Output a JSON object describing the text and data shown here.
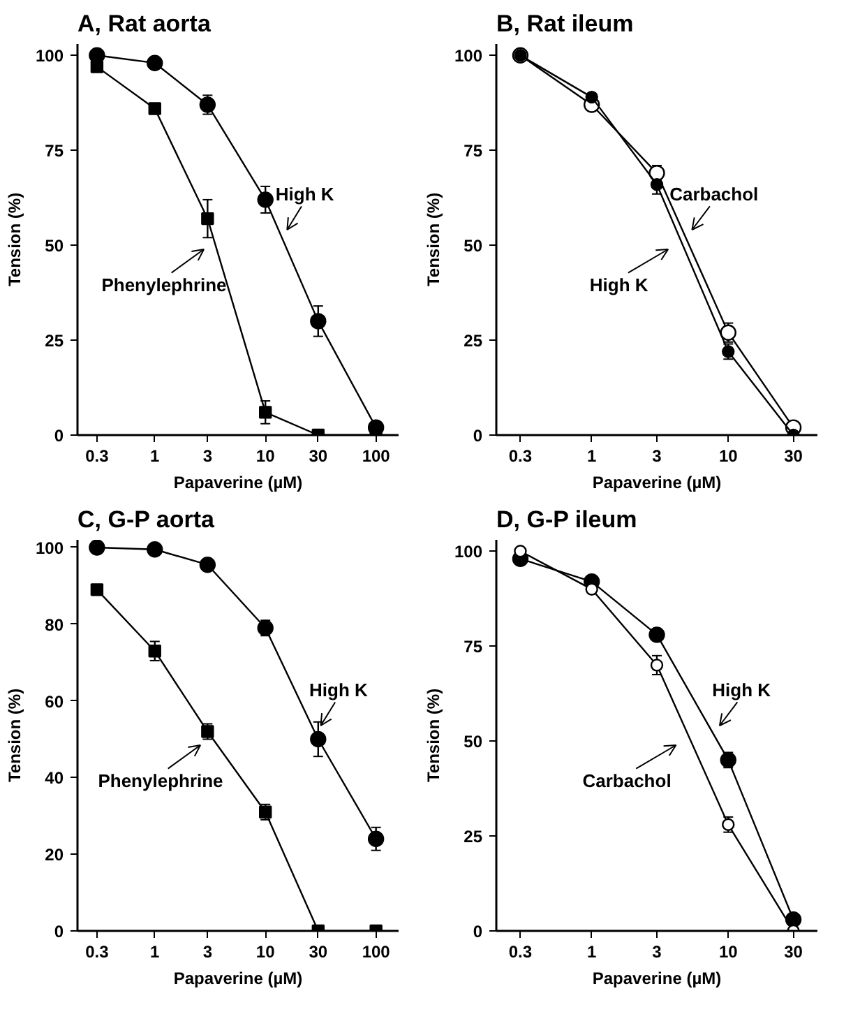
{
  "chart_data": [
    {
      "type": "line",
      "title": "A, Rat aorta",
      "xlabel": "Papaverine (µM)",
      "ylabel": "Tension (%)",
      "log": "x",
      "x": [
        0.3,
        1,
        3,
        10,
        30,
        100
      ],
      "xlim": [
        0.2,
        160
      ],
      "xticks": [
        0.3,
        1,
        3,
        10,
        30,
        100
      ],
      "ylim": [
        0,
        103
      ],
      "yticks": [
        0,
        25,
        50,
        75,
        100
      ],
      "series": [
        {
          "name": "High K",
          "color": "#000000",
          "marker": "circle",
          "values": [
            100,
            98,
            87,
            62,
            30,
            2
          ],
          "errors": [
            null,
            null,
            2.5,
            3.5,
            4,
            null
          ]
        },
        {
          "name": "Phenylephrine",
          "color": "#000000",
          "marker": "square",
          "values": [
            97,
            86,
            57,
            6,
            0,
            0
          ],
          "errors": [
            null,
            null,
            5,
            3,
            null,
            null
          ]
        }
      ]
    },
    {
      "type": "line",
      "title": "B, Rat ileum",
      "xlabel": "Papaverine (µM)",
      "ylabel": "Tension (%)",
      "log": "x",
      "x": [
        0.3,
        1,
        3,
        10,
        30
      ],
      "xlim": [
        0.2,
        45
      ],
      "xticks": [
        0.3,
        1,
        3,
        10,
        30
      ],
      "ylim": [
        0,
        103
      ],
      "yticks": [
        0,
        25,
        50,
        75,
        100
      ],
      "series": [
        {
          "name": "Carbachol",
          "color": "#000000",
          "marker": "circle_open",
          "values": [
            100,
            87,
            69,
            27,
            2
          ],
          "errors": [
            null,
            null,
            2,
            2.5,
            null
          ]
        },
        {
          "name": "High K",
          "color": "#000000",
          "marker": "circle",
          "values": [
            100,
            89,
            66,
            22,
            0
          ],
          "errors": [
            null,
            null,
            2.5,
            2,
            null
          ]
        }
      ]
    },
    {
      "type": "line",
      "title": "C, G-P aorta",
      "xlabel": "Papaverine (µM)",
      "ylabel": "Tension (%)",
      "log": "x",
      "x": [
        0.3,
        1,
        3,
        10,
        30,
        100
      ],
      "xlim": [
        0.2,
        160
      ],
      "xticks": [
        0.3,
        1,
        3,
        10,
        30,
        100
      ],
      "ylim": [
        0,
        102
      ],
      "yticks": [
        0,
        20,
        40,
        60,
        80,
        100
      ],
      "series": [
        {
          "name": "High K",
          "color": "#000000",
          "marker": "circle",
          "values": [
            100,
            99.5,
            95.5,
            79,
            50,
            24
          ],
          "errors": [
            null,
            null,
            null,
            2,
            4.5,
            3
          ]
        },
        {
          "name": "Phenylephrine",
          "color": "#000000",
          "marker": "square",
          "values": [
            89,
            73,
            52,
            31,
            0,
            0
          ],
          "errors": [
            null,
            2.5,
            2,
            2,
            null,
            null
          ]
        }
      ]
    },
    {
      "type": "line",
      "title": "D, G-P ileum",
      "xlabel": "Papaverine (µM)",
      "ylabel": "Tension (%)",
      "log": "x",
      "x": [
        0.3,
        1,
        3,
        10,
        30
      ],
      "xlim": [
        0.2,
        45
      ],
      "xticks": [
        0.3,
        1,
        3,
        10,
        30
      ],
      "ylim": [
        0,
        103
      ],
      "yticks": [
        0,
        25,
        50,
        75,
        100
      ],
      "series": [
        {
          "name": "High K",
          "color": "#000000",
          "marker": "circle",
          "values": [
            98,
            92,
            78,
            45,
            3
          ],
          "errors": [
            null,
            null,
            null,
            2,
            null
          ]
        },
        {
          "name": "Carbachol",
          "color": "#000000",
          "marker": "circle_open",
          "values": [
            100,
            90,
            70,
            28,
            0
          ],
          "errors": [
            null,
            null,
            2.5,
            2,
            null
          ]
        }
      ]
    }
  ]
}
